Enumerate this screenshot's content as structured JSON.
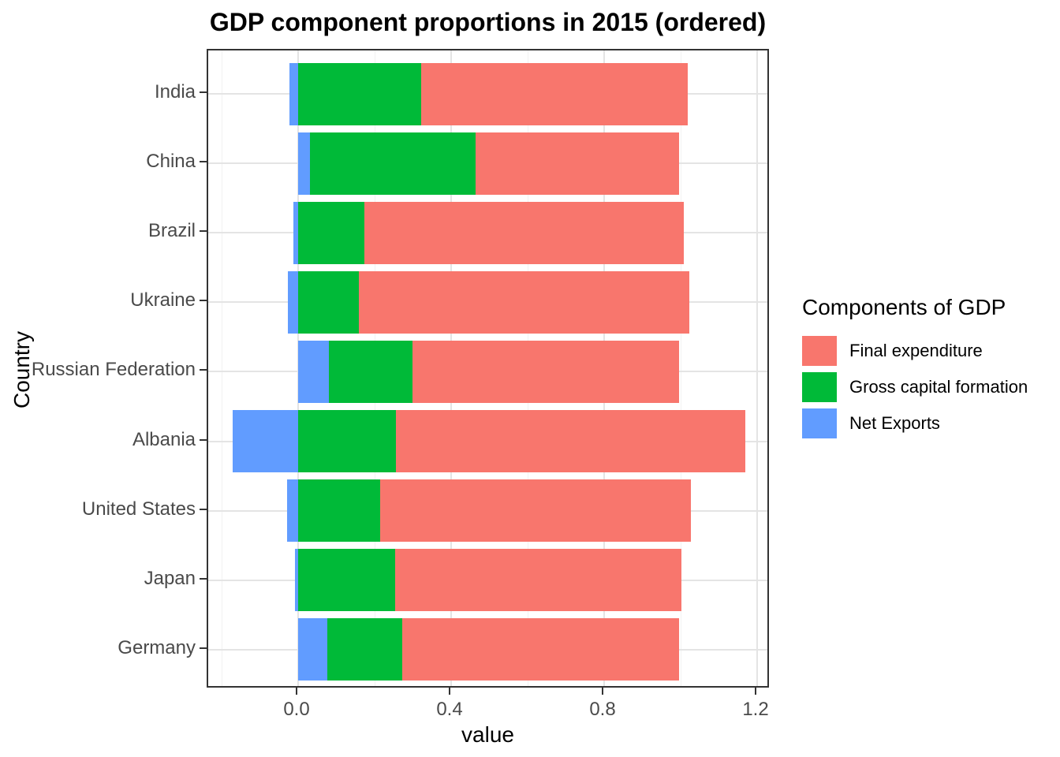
{
  "chart_data": {
    "type": "bar",
    "orientation": "horizontal",
    "stacked": true,
    "title": "GDP component proportions in 2015 (ordered)",
    "xlabel": "value",
    "ylabel": "Country",
    "legend_title": "Components of GDP",
    "legend_position": "right",
    "grid": true,
    "categories": [
      "India",
      "China",
      "Brazil",
      "Ukraine",
      "Russian Federation",
      "Albania",
      "United States",
      "Japan",
      "Germany"
    ],
    "series": [
      {
        "name": "Final expenditure",
        "color": "#F8766D",
        "values": [
          0.697,
          0.533,
          0.835,
          0.865,
          0.698,
          0.913,
          0.812,
          0.749,
          0.724
        ]
      },
      {
        "name": "Gross capital formation",
        "color": "#00BA38",
        "values": [
          0.321,
          0.432,
          0.173,
          0.158,
          0.218,
          0.256,
          0.214,
          0.253,
          0.196
        ]
      },
      {
        "name": "Net Exports",
        "color": "#619CFF",
        "values": [
          -0.023,
          0.031,
          -0.012,
          -0.027,
          0.08,
          -0.172,
          -0.029,
          -0.009,
          0.076
        ]
      }
    ],
    "stack_order": [
      "Net Exports",
      "Gross capital formation",
      "Final expenditure"
    ],
    "xlim": [
      -0.235,
      1.235
    ],
    "x_major_ticks": [
      0.0,
      0.4,
      0.8,
      1.2
    ],
    "x_minor_ticks": [
      -0.2,
      0.2,
      0.6,
      1.0
    ],
    "x_tick_labels": [
      "0.0",
      "0.4",
      "0.8",
      "1.2"
    ],
    "colors": {
      "grid_major": "#e4e4e4",
      "grid_minor": "#f2f2f2",
      "panel_border": "#333333",
      "axis_text": "#4a4a4a",
      "title_text": "#000000"
    }
  }
}
